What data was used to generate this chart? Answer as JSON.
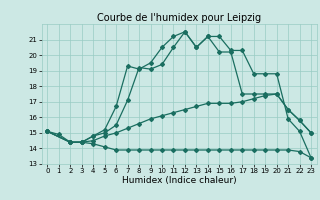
{
  "title": "Courbe de l'humidex pour Leipzig",
  "xlabel": "Humidex (Indice chaleur)",
  "xlim": [
    -0.5,
    23.5
  ],
  "ylim": [
    13,
    22
  ],
  "yticks": [
    13,
    14,
    15,
    16,
    17,
    18,
    19,
    20,
    21
  ],
  "xticks": [
    0,
    1,
    2,
    3,
    4,
    5,
    6,
    7,
    8,
    9,
    10,
    11,
    12,
    13,
    14,
    15,
    16,
    17,
    18,
    19,
    20,
    21,
    22,
    23
  ],
  "bg_color": "#cce8e4",
  "grid_color": "#99ccc4",
  "line_color": "#1a6e60",
  "line1_x": [
    0,
    1,
    2,
    3,
    4,
    5,
    6,
    7,
    8,
    9,
    10,
    11,
    12,
    13,
    14,
    15,
    16,
    17,
    18,
    19,
    20,
    21,
    22,
    23
  ],
  "line1_y": [
    15.1,
    14.9,
    14.4,
    14.4,
    14.8,
    15.2,
    16.7,
    19.3,
    19.1,
    19.5,
    20.5,
    21.2,
    21.5,
    20.5,
    21.2,
    21.2,
    20.3,
    20.3,
    18.8,
    18.8,
    18.8,
    15.9,
    15.1,
    13.4
  ],
  "line2_x": [
    0,
    2,
    3,
    4,
    5,
    6,
    7,
    8,
    9,
    10,
    11,
    12,
    13,
    14,
    15,
    16,
    17,
    18,
    19,
    20,
    21,
    22,
    23
  ],
  "line2_y": [
    15.1,
    14.4,
    14.4,
    14.8,
    15.0,
    15.5,
    17.1,
    19.2,
    19.1,
    19.4,
    20.5,
    21.5,
    20.5,
    21.2,
    20.2,
    20.2,
    17.5,
    17.5,
    17.5,
    17.5,
    16.5,
    15.8,
    15.0
  ],
  "line3_x": [
    0,
    2,
    3,
    4,
    5,
    6,
    7,
    8,
    9,
    10,
    11,
    12,
    13,
    14,
    15,
    16,
    17,
    18,
    19,
    20,
    21,
    22,
    23
  ],
  "line3_y": [
    15.1,
    14.4,
    14.4,
    14.5,
    14.8,
    15.0,
    15.3,
    15.6,
    15.9,
    16.1,
    16.3,
    16.5,
    16.7,
    16.9,
    16.9,
    16.9,
    17.0,
    17.2,
    17.4,
    17.5,
    16.5,
    15.8,
    15.0
  ],
  "line4_x": [
    0,
    2,
    3,
    4,
    5,
    6,
    7,
    8,
    9,
    10,
    11,
    12,
    13,
    14,
    15,
    16,
    17,
    18,
    19,
    20,
    21,
    22,
    23
  ],
  "line4_y": [
    15.1,
    14.4,
    14.4,
    14.3,
    14.1,
    13.9,
    13.9,
    13.9,
    13.9,
    13.9,
    13.9,
    13.9,
    13.9,
    13.9,
    13.9,
    13.9,
    13.9,
    13.9,
    13.9,
    13.9,
    13.9,
    13.8,
    13.4
  ],
  "marker": "D",
  "markersize": 2.0,
  "linewidth": 0.9,
  "title_fontsize": 7,
  "label_fontsize": 6.5,
  "tick_fontsize": 5.0
}
